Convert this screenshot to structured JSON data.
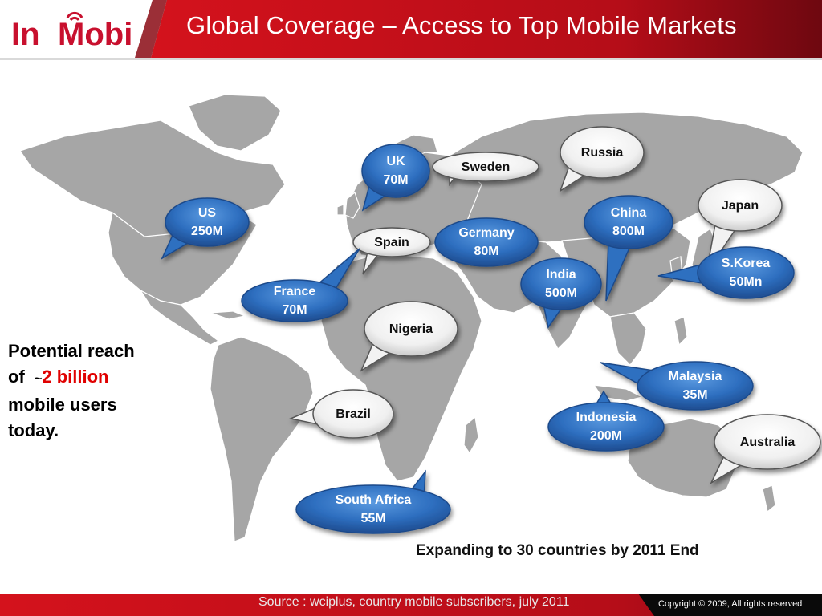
{
  "header": {
    "logo_text": "InMobi",
    "title": "Global Coverage – Access to Top Mobile Markets"
  },
  "map": {
    "markets": [
      {
        "id": "uk",
        "name": "UK",
        "value": "70M",
        "style": "blue"
      },
      {
        "id": "sweden",
        "name": "Sweden",
        "value": "",
        "style": "white"
      },
      {
        "id": "russia",
        "name": "Russia",
        "value": "",
        "style": "white"
      },
      {
        "id": "us",
        "name": "US",
        "value": "250M",
        "style": "blue"
      },
      {
        "id": "spain",
        "name": "Spain",
        "value": "",
        "style": "white"
      },
      {
        "id": "germany",
        "name": "Germany",
        "value": "80M",
        "style": "blue"
      },
      {
        "id": "china",
        "name": "China",
        "value": "800M",
        "style": "blue"
      },
      {
        "id": "japan",
        "name": "Japan",
        "value": "",
        "style": "white"
      },
      {
        "id": "france",
        "name": "France",
        "value": "70M",
        "style": "blue"
      },
      {
        "id": "india",
        "name": "India",
        "value": "500M",
        "style": "blue"
      },
      {
        "id": "skorea",
        "name": "S.Korea",
        "value": "50Mn",
        "style": "blue"
      },
      {
        "id": "nigeria",
        "name": "Nigeria",
        "value": "",
        "style": "white"
      },
      {
        "id": "malaysia",
        "name": "Malaysia",
        "value": "35M",
        "style": "blue"
      },
      {
        "id": "brazil",
        "name": "Brazil",
        "value": "",
        "style": "white"
      },
      {
        "id": "indonesia",
        "name": "Indonesia",
        "value": "200M",
        "style": "blue"
      },
      {
        "id": "australia",
        "name": "Australia",
        "value": "",
        "style": "white"
      },
      {
        "id": "southafrica",
        "name": "South Africa",
        "value": "55M",
        "style": "blue"
      }
    ]
  },
  "reach": {
    "line1": "Potential reach",
    "of": "of",
    "tilde": "~",
    "highlight": "2 billion",
    "line3": "mobile users",
    "line4": "today."
  },
  "expansion_note": "Expanding to 30 countries by 2011 End",
  "footer": {
    "source": "Source : wciplus, country mobile subscribers, july 2011",
    "copyright": "Copyright © 2009, All rights reserved"
  },
  "colors": {
    "header_red": "#c8102e",
    "dark_red": "#7a0a12",
    "bubble_blue": "#2e6fc0",
    "land_gray": "#a6a6a6"
  }
}
